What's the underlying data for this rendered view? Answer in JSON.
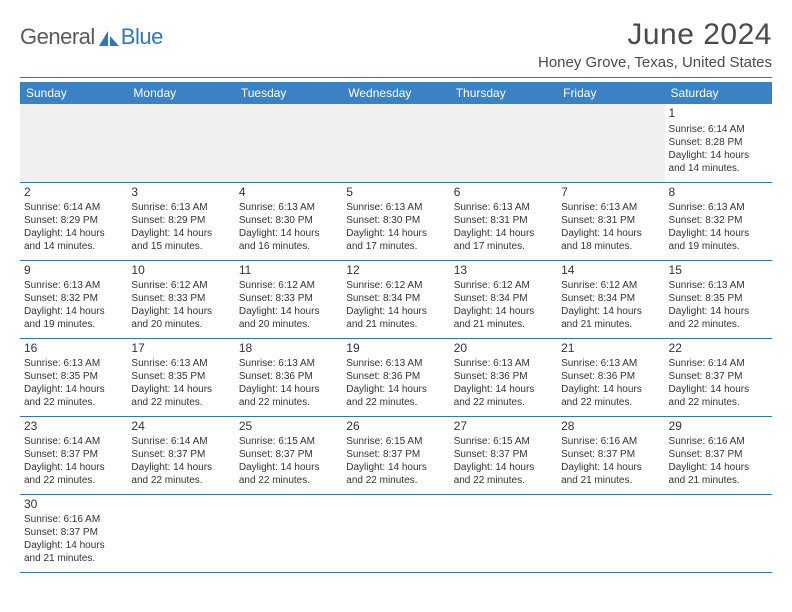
{
  "logo": {
    "dark": "General",
    "blue": "Blue"
  },
  "title": "June 2024",
  "location": "Honey Grove, Texas, United States",
  "colors": {
    "header_bg": "#3a82c4",
    "accent": "#2f77bc",
    "text": "#333333",
    "blank_bg": "#f0f0f0",
    "logo_blue": "#2f77bc",
    "logo_dark": "#5a5a5a"
  },
  "weekdays": [
    "Sunday",
    "Monday",
    "Tuesday",
    "Wednesday",
    "Thursday",
    "Friday",
    "Saturday"
  ],
  "first_weekday_index": 6,
  "days": [
    {
      "n": 1,
      "sr": "6:14 AM",
      "ss": "8:28 PM",
      "dl": "14 hours and 14 minutes."
    },
    {
      "n": 2,
      "sr": "6:14 AM",
      "ss": "8:29 PM",
      "dl": "14 hours and 14 minutes."
    },
    {
      "n": 3,
      "sr": "6:13 AM",
      "ss": "8:29 PM",
      "dl": "14 hours and 15 minutes."
    },
    {
      "n": 4,
      "sr": "6:13 AM",
      "ss": "8:30 PM",
      "dl": "14 hours and 16 minutes."
    },
    {
      "n": 5,
      "sr": "6:13 AM",
      "ss": "8:30 PM",
      "dl": "14 hours and 17 minutes."
    },
    {
      "n": 6,
      "sr": "6:13 AM",
      "ss": "8:31 PM",
      "dl": "14 hours and 17 minutes."
    },
    {
      "n": 7,
      "sr": "6:13 AM",
      "ss": "8:31 PM",
      "dl": "14 hours and 18 minutes."
    },
    {
      "n": 8,
      "sr": "6:13 AM",
      "ss": "8:32 PM",
      "dl": "14 hours and 19 minutes."
    },
    {
      "n": 9,
      "sr": "6:13 AM",
      "ss": "8:32 PM",
      "dl": "14 hours and 19 minutes."
    },
    {
      "n": 10,
      "sr": "6:12 AM",
      "ss": "8:33 PM",
      "dl": "14 hours and 20 minutes."
    },
    {
      "n": 11,
      "sr": "6:12 AM",
      "ss": "8:33 PM",
      "dl": "14 hours and 20 minutes."
    },
    {
      "n": 12,
      "sr": "6:12 AM",
      "ss": "8:34 PM",
      "dl": "14 hours and 21 minutes."
    },
    {
      "n": 13,
      "sr": "6:12 AM",
      "ss": "8:34 PM",
      "dl": "14 hours and 21 minutes."
    },
    {
      "n": 14,
      "sr": "6:12 AM",
      "ss": "8:34 PM",
      "dl": "14 hours and 21 minutes."
    },
    {
      "n": 15,
      "sr": "6:13 AM",
      "ss": "8:35 PM",
      "dl": "14 hours and 22 minutes."
    },
    {
      "n": 16,
      "sr": "6:13 AM",
      "ss": "8:35 PM",
      "dl": "14 hours and 22 minutes."
    },
    {
      "n": 17,
      "sr": "6:13 AM",
      "ss": "8:35 PM",
      "dl": "14 hours and 22 minutes."
    },
    {
      "n": 18,
      "sr": "6:13 AM",
      "ss": "8:36 PM",
      "dl": "14 hours and 22 minutes."
    },
    {
      "n": 19,
      "sr": "6:13 AM",
      "ss": "8:36 PM",
      "dl": "14 hours and 22 minutes."
    },
    {
      "n": 20,
      "sr": "6:13 AM",
      "ss": "8:36 PM",
      "dl": "14 hours and 22 minutes."
    },
    {
      "n": 21,
      "sr": "6:13 AM",
      "ss": "8:36 PM",
      "dl": "14 hours and 22 minutes."
    },
    {
      "n": 22,
      "sr": "6:14 AM",
      "ss": "8:37 PM",
      "dl": "14 hours and 22 minutes."
    },
    {
      "n": 23,
      "sr": "6:14 AM",
      "ss": "8:37 PM",
      "dl": "14 hours and 22 minutes."
    },
    {
      "n": 24,
      "sr": "6:14 AM",
      "ss": "8:37 PM",
      "dl": "14 hours and 22 minutes."
    },
    {
      "n": 25,
      "sr": "6:15 AM",
      "ss": "8:37 PM",
      "dl": "14 hours and 22 minutes."
    },
    {
      "n": 26,
      "sr": "6:15 AM",
      "ss": "8:37 PM",
      "dl": "14 hours and 22 minutes."
    },
    {
      "n": 27,
      "sr": "6:15 AM",
      "ss": "8:37 PM",
      "dl": "14 hours and 22 minutes."
    },
    {
      "n": 28,
      "sr": "6:16 AM",
      "ss": "8:37 PM",
      "dl": "14 hours and 21 minutes."
    },
    {
      "n": 29,
      "sr": "6:16 AM",
      "ss": "8:37 PM",
      "dl": "14 hours and 21 minutes."
    },
    {
      "n": 30,
      "sr": "6:16 AM",
      "ss": "8:37 PM",
      "dl": "14 hours and 21 minutes."
    }
  ],
  "labels": {
    "sunrise": "Sunrise:",
    "sunset": "Sunset:",
    "daylight": "Daylight:"
  }
}
